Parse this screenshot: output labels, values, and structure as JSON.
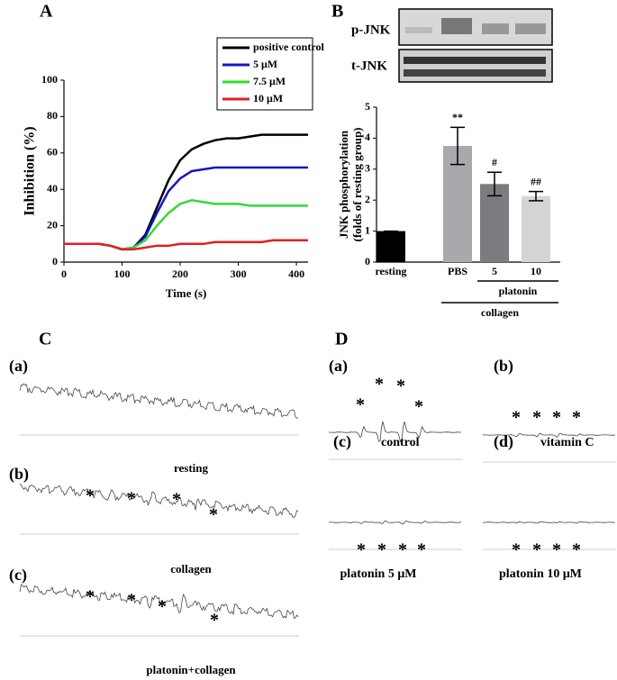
{
  "chart_data": [
    {
      "type": "line",
      "xlabel": "Time (s)",
      "ylabel": "Inhibition (%)",
      "x": [
        0,
        20,
        40,
        60,
        80,
        100,
        120,
        140,
        160,
        180,
        200,
        220,
        240,
        260,
        280,
        300,
        320,
        340,
        360,
        380,
        400,
        420
      ],
      "xlim": [
        0,
        420
      ],
      "ylim": [
        0,
        100
      ],
      "xticks": [
        0,
        100,
        200,
        300,
        400
      ],
      "yticks": [
        0,
        20,
        40,
        60,
        80,
        100
      ],
      "legend": "upper right",
      "series": [
        {
          "name": "positive control",
          "color": "#000000",
          "values": [
            10,
            10,
            10,
            10,
            9,
            7,
            8,
            15,
            30,
            45,
            56,
            62,
            65,
            67,
            68,
            68,
            69,
            70,
            70,
            70,
            70,
            70
          ]
        },
        {
          "name": "5 μM",
          "color": "#1414c8",
          "values": [
            10,
            10,
            10,
            10,
            9,
            7,
            8,
            14,
            27,
            39,
            46,
            50,
            51,
            52,
            52,
            52,
            52,
            52,
            52,
            52,
            52,
            52
          ]
        },
        {
          "name": "7.5 μM",
          "color": "#32dc32",
          "values": [
            10,
            10,
            10,
            10,
            9,
            7,
            8,
            12,
            20,
            27,
            32,
            34,
            33,
            32,
            32,
            32,
            31,
            31,
            31,
            31,
            31,
            31
          ]
        },
        {
          "name": "10 μM",
          "color": "#e02020",
          "values": [
            10,
            10,
            10,
            10,
            9,
            7,
            7,
            8,
            9,
            9,
            10,
            10,
            10,
            11,
            11,
            11,
            11,
            11,
            12,
            12,
            12,
            12
          ]
        }
      ]
    },
    {
      "type": "bar",
      "ylabel": [
        "JNK phosphorylation",
        "(folds of resting group)"
      ],
      "categories": [
        "resting",
        "PBS",
        "5",
        "10"
      ],
      "values": [
        1.0,
        3.75,
        2.52,
        2.13
      ],
      "errors": [
        0,
        0.6,
        0.38,
        0.15
      ],
      "colors": [
        "#000000",
        "#a8a8ad",
        "#7b7b80",
        "#d4d4d4"
      ],
      "annotations": [
        null,
        "**",
        "#",
        "##"
      ],
      "ylim": [
        0,
        5
      ],
      "yticks": [
        0,
        1,
        2,
        3,
        4,
        5
      ],
      "groups": [
        "platonin",
        "collagen"
      ]
    }
  ],
  "panel_labels": [
    "A",
    "B",
    "C",
    "D"
  ],
  "blots": [
    "p-JNK",
    "t-JNK"
  ],
  "epr_c": [
    {
      "tag": "(a)",
      "caption": "resting"
    },
    {
      "tag": "(b)",
      "caption": "collagen",
      "marker": "*"
    },
    {
      "tag": "(c)",
      "caption": "platonin+collagen",
      "marker": "*"
    }
  ],
  "epr_d": [
    {
      "tag": "(a)",
      "caption": "control",
      "marker": "*"
    },
    {
      "tag": "(b)",
      "caption": "vitamin C",
      "marker": "*"
    },
    {
      "tag": "(c)",
      "caption": "platonin 5 μM",
      "marker": "*"
    },
    {
      "tag": "(d)",
      "caption": "platonin 10 μM",
      "marker": "*"
    }
  ]
}
